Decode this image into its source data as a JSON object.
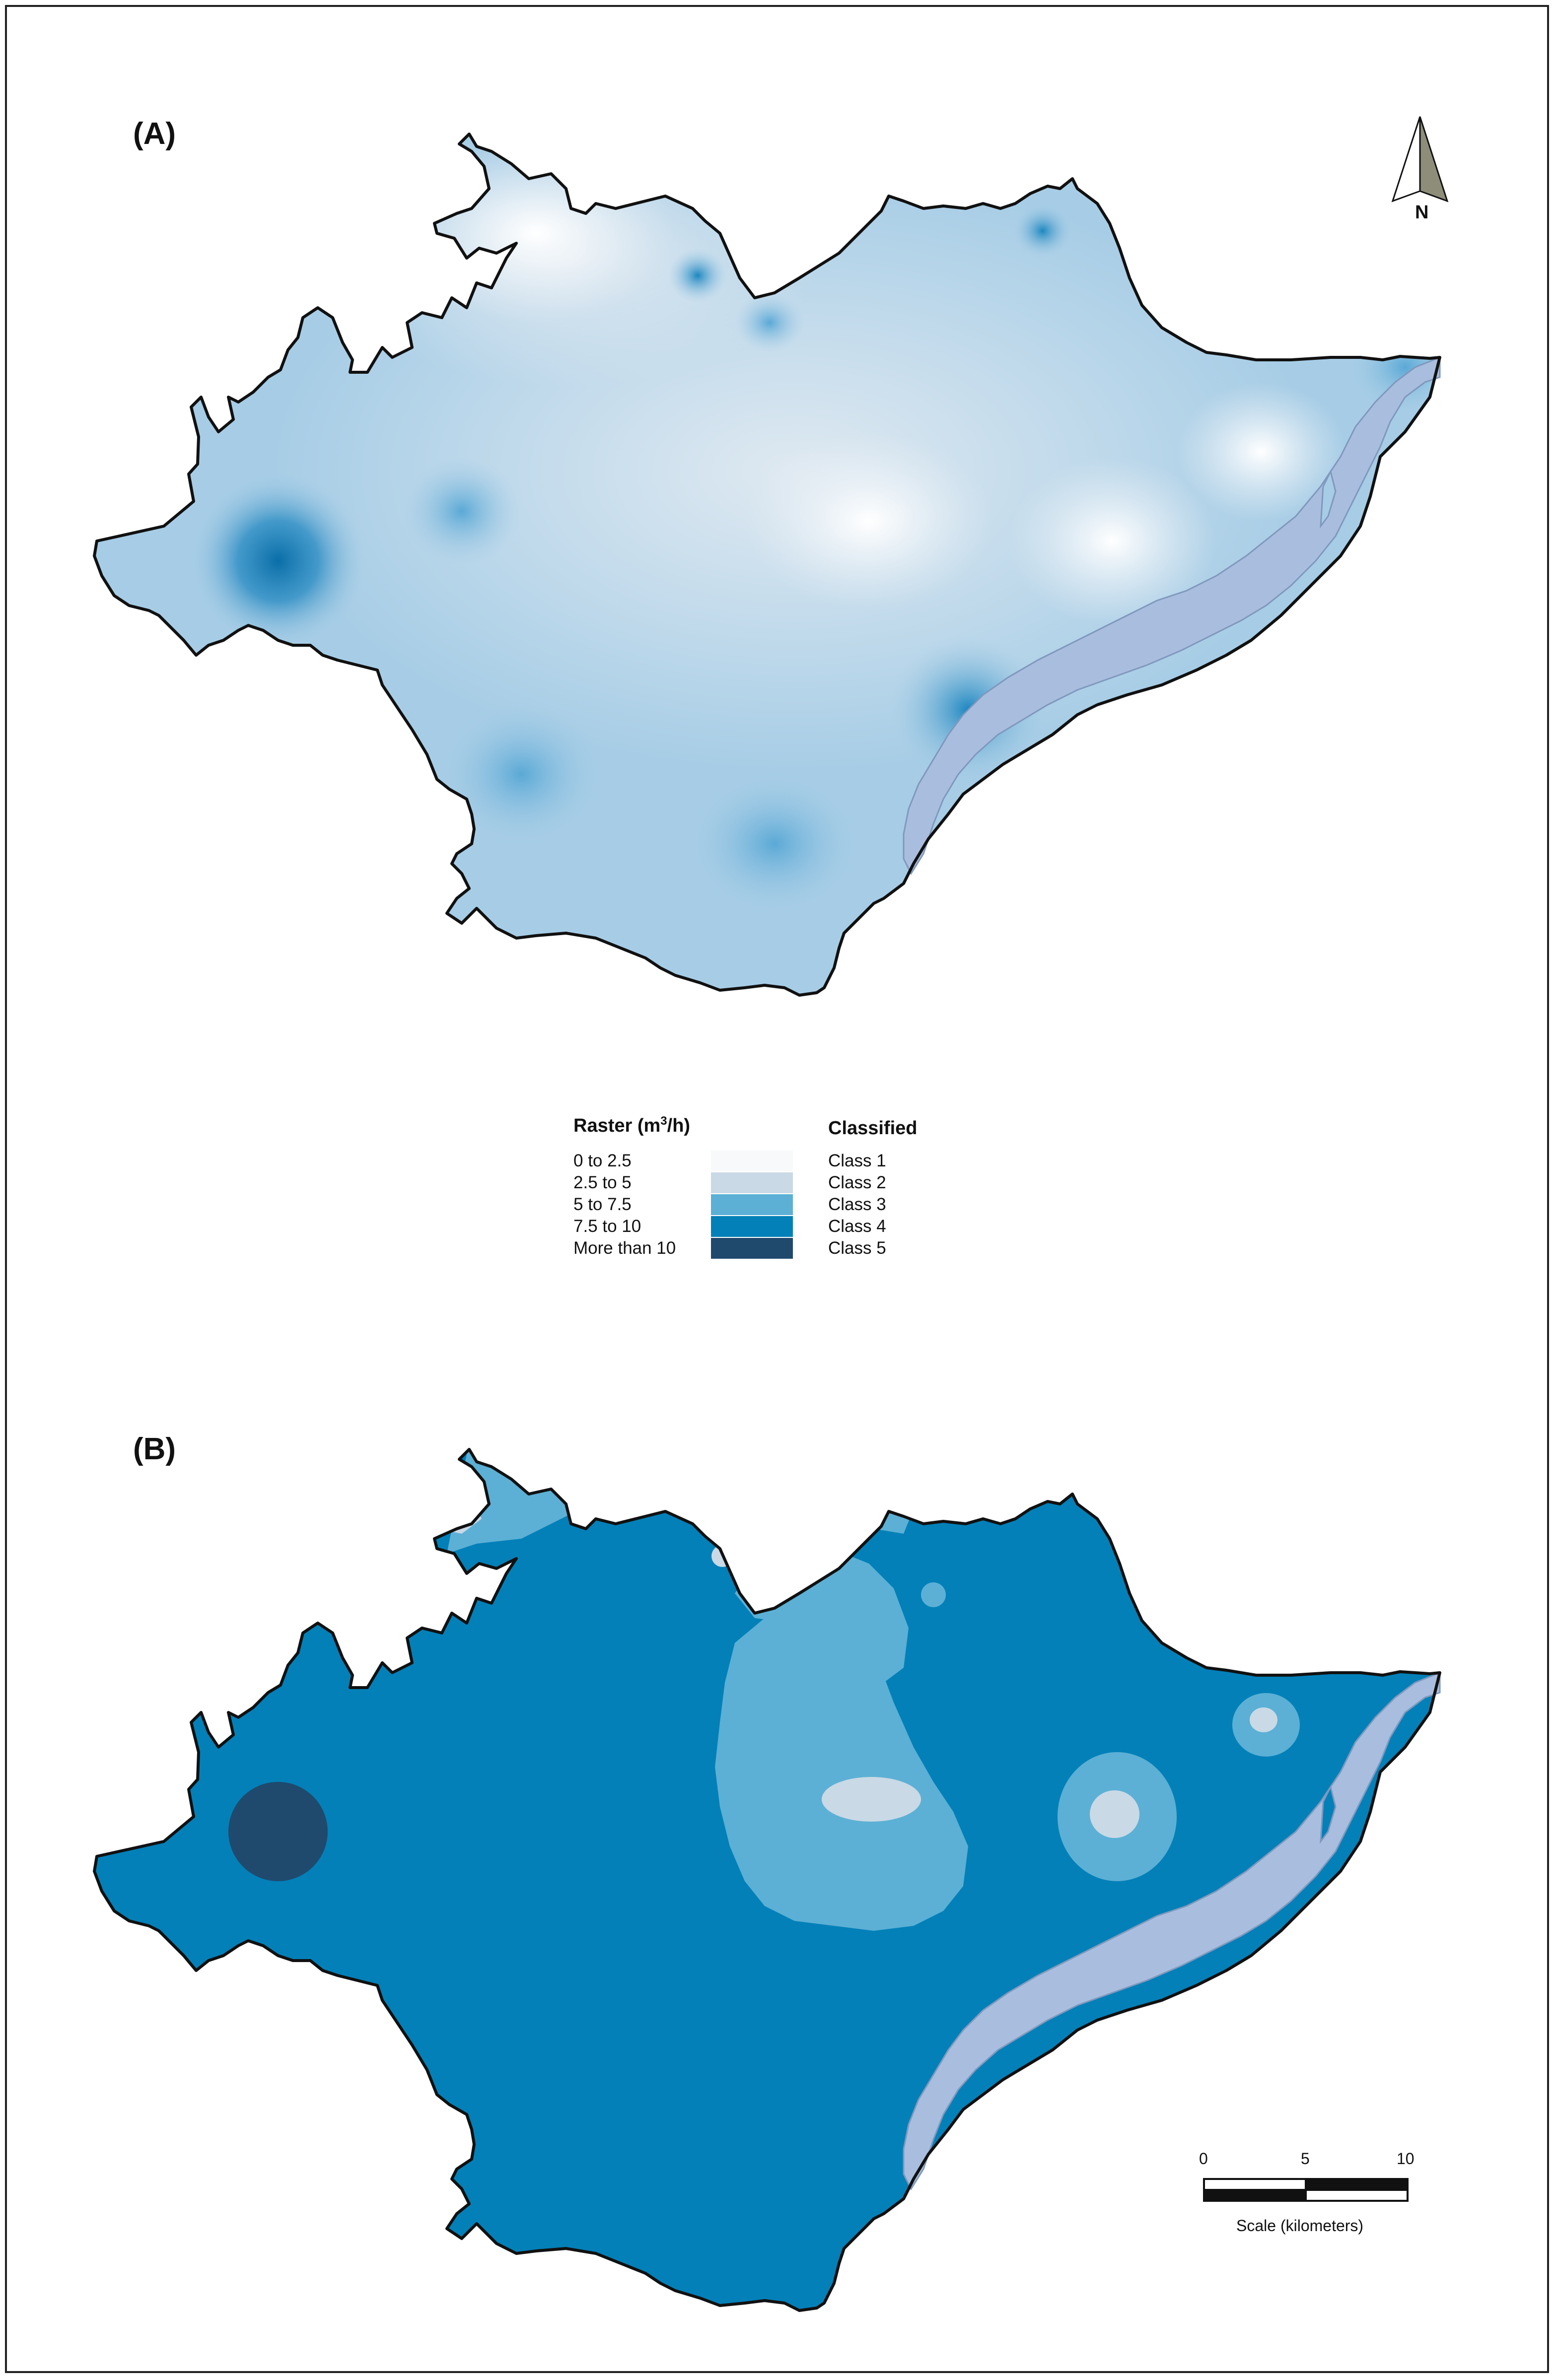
{
  "panels": {
    "a_label": "(A)",
    "b_label": "(B)"
  },
  "north_arrow": {
    "label": "N"
  },
  "legend": {
    "raster_title": "Raster (m",
    "raster_title_sup": "3",
    "raster_title_end": "/h)",
    "classified_title": "Classified",
    "rows": [
      {
        "range": "0 to 2.5",
        "class": "Class 1",
        "color": "#f7f9fb"
      },
      {
        "range": "2.5 to 5",
        "class": "Class 2",
        "color": "#c9d9e6"
      },
      {
        "range": "5 to 7.5",
        "class": "Class 3",
        "color": "#5cb0d5"
      },
      {
        "range": "7.5 to 10",
        "class": "Class 4",
        "color": "#0380b8"
      },
      {
        "range": "More than 10",
        "class": "Class 5",
        "color": "#1f4a6e"
      }
    ]
  },
  "scale_bar": {
    "tick_0": "0",
    "tick_5": "5",
    "tick_10": "10",
    "caption": "Scale (kilometers)"
  },
  "colors": {
    "river": "#a9bedf",
    "outline": "#111111",
    "raster_base": "#a7cde6"
  }
}
